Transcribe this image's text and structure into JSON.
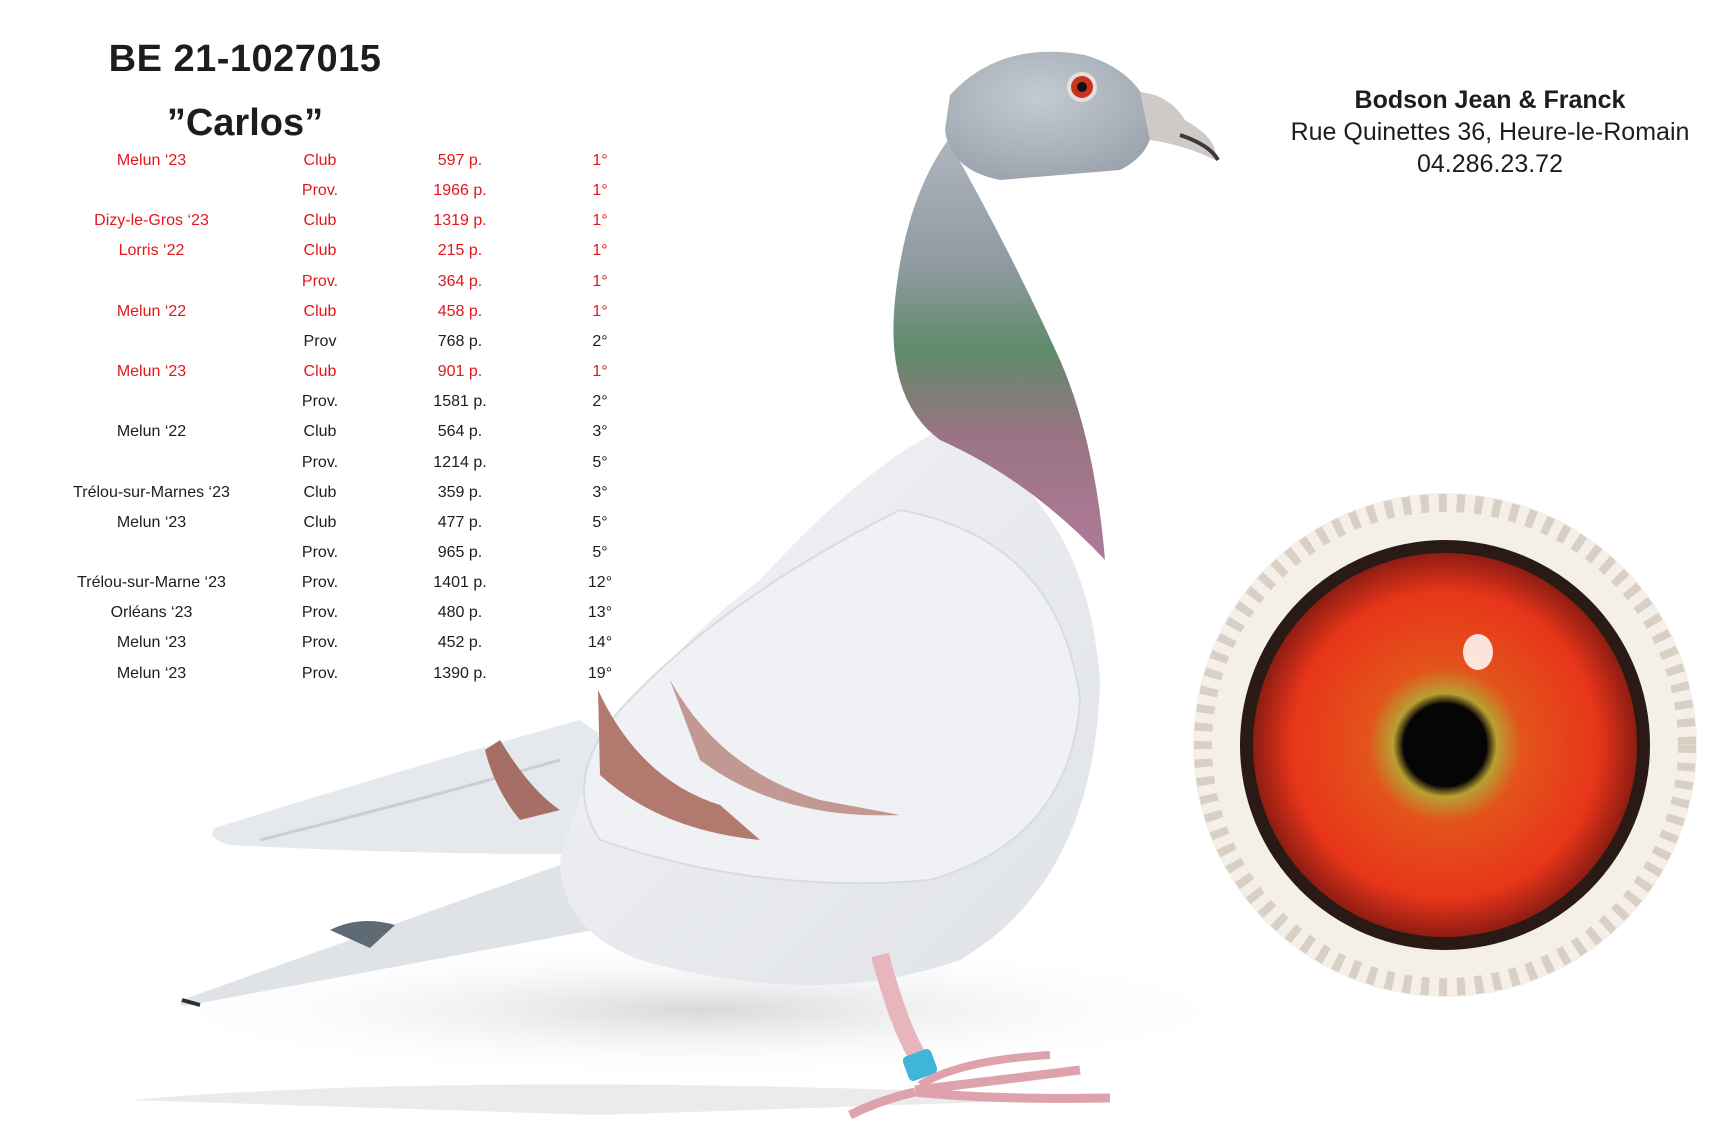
{
  "header": {
    "ring_number": "BE 21-1027015",
    "bird_name": "”Carlos”"
  },
  "owner": {
    "name": "Bodson Jean & Franck",
    "address": "Rue Quinettes 36, Heure-le-Romain",
    "phone": "04.286.23.72"
  },
  "results": [
    {
      "race": "Melun ‘23",
      "level": "Club",
      "count": "597 p.",
      "place": "1°",
      "highlight": true
    },
    {
      "race": "",
      "level": "Prov.",
      "count": "1966 p.",
      "place": "1°",
      "highlight": true
    },
    {
      "race": "Dizy-le-Gros ‘23",
      "level": "Club",
      "count": "1319 p.",
      "place": "1°",
      "highlight": true
    },
    {
      "race": "Lorris ‘22",
      "level": "Club",
      "count": "215 p.",
      "place": "1°",
      "highlight": true
    },
    {
      "race": "",
      "level": "Prov.",
      "count": "364 p.",
      "place": "1°",
      "highlight": true
    },
    {
      "race": "Melun ‘22",
      "level": "Club",
      "count": "458 p.",
      "place": "1°",
      "highlight": true
    },
    {
      "race": "",
      "level": "Prov",
      "count": "768 p.",
      "place": "2°",
      "highlight": false
    },
    {
      "race": "Melun ‘23",
      "level": "Club",
      "count": "901 p.",
      "place": "1°",
      "highlight": true
    },
    {
      "race": "",
      "level": "Prov.",
      "count": "1581 p.",
      "place": "2°",
      "highlight": false
    },
    {
      "race": "Melun ‘22",
      "level": "Club",
      "count": "564 p.",
      "place": "3°",
      "highlight": false
    },
    {
      "race": "",
      "level": "Prov.",
      "count": "1214 p.",
      "place": "5°",
      "highlight": false
    },
    {
      "race": "Trélou-sur-Marnes ‘23",
      "level": "Club",
      "count": "359 p.",
      "place": "3°",
      "highlight": false
    },
    {
      "race": "Melun ‘23",
      "level": "Club",
      "count": "477 p.",
      "place": "5°",
      "highlight": false
    },
    {
      "race": "",
      "level": "Prov.",
      "count": "965 p.",
      "place": "5°",
      "highlight": false
    },
    {
      "race": "Trélou-sur-Marne ‘23",
      "level": "Prov.",
      "count": "1401 p.",
      "place": "12°",
      "highlight": false
    },
    {
      "race": "Orléans ‘23",
      "level": "Prov.",
      "count": "480 p.",
      "place": "13°",
      "highlight": false
    },
    {
      "race": "Melun ‘23",
      "level": "Prov.",
      "count": "452 p.",
      "place": "14°",
      "highlight": false
    },
    {
      "race": "Melun ‘23",
      "level": "Prov.",
      "count": "1390 p.",
      "place": "19°",
      "highlight": false
    }
  ],
  "colors": {
    "highlight_text": "#e0171b",
    "normal_text": "#1d1d1d"
  }
}
